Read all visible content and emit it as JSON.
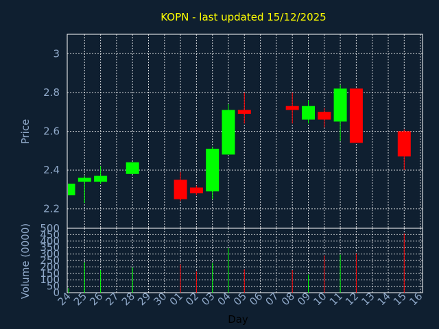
{
  "chart_data": {
    "type": "candlestick",
    "title": "KOPN - last updated 15/12/2025",
    "xlabel": "Day",
    "x_ticks": [
      "24",
      "25",
      "26",
      "27",
      "28",
      "29",
      "30",
      "01",
      "02",
      "03",
      "04",
      "05",
      "06",
      "07",
      "08",
      "09",
      "10",
      "11",
      "12",
      "13",
      "14",
      "15",
      "16"
    ],
    "price_panel": {
      "ylabel": "Price",
      "ylim": [
        2.1,
        3.1
      ],
      "y_ticks": [
        "2.2",
        "2.4",
        "2.6",
        "2.8",
        "3"
      ],
      "grid": true,
      "candles": [
        {
          "day": "24",
          "open": 2.27,
          "high": 2.33,
          "low": 2.27,
          "close": 2.33,
          "direction": "up"
        },
        {
          "day": "25",
          "open": 2.34,
          "high": 2.37,
          "low": 2.23,
          "close": 2.36,
          "direction": "up"
        },
        {
          "day": "26",
          "open": 2.34,
          "high": 2.42,
          "low": 2.33,
          "close": 2.37,
          "direction": "up"
        },
        {
          "day": "28",
          "open": 2.38,
          "high": 2.44,
          "low": 2.38,
          "close": 2.44,
          "direction": "up"
        },
        {
          "day": "01",
          "open": 2.35,
          "high": 2.39,
          "low": 2.24,
          "close": 2.25,
          "direction": "down"
        },
        {
          "day": "02",
          "open": 2.31,
          "high": 2.32,
          "low": 2.27,
          "close": 2.28,
          "direction": "down"
        },
        {
          "day": "03",
          "open": 2.29,
          "high": 2.52,
          "low": 2.25,
          "close": 2.51,
          "direction": "up"
        },
        {
          "day": "04",
          "open": 2.48,
          "high": 2.74,
          "low": 2.48,
          "close": 2.71,
          "direction": "up"
        },
        {
          "day": "05",
          "open": 2.71,
          "high": 2.8,
          "low": 2.64,
          "close": 2.69,
          "direction": "down"
        },
        {
          "day": "08",
          "open": 2.73,
          "high": 2.8,
          "low": 2.64,
          "close": 2.71,
          "direction": "down"
        },
        {
          "day": "09",
          "open": 2.66,
          "high": 2.76,
          "low": 2.64,
          "close": 2.73,
          "direction": "up"
        },
        {
          "day": "10",
          "open": 2.7,
          "high": 2.72,
          "low": 2.62,
          "close": 2.66,
          "direction": "down"
        },
        {
          "day": "11",
          "open": 2.65,
          "high": 2.84,
          "low": 2.55,
          "close": 2.82,
          "direction": "up"
        },
        {
          "day": "12",
          "open": 2.82,
          "high": 2.82,
          "low": 2.54,
          "close": 2.54,
          "direction": "down"
        },
        {
          "day": "15",
          "open": 2.6,
          "high": 2.61,
          "low": 2.4,
          "close": 2.47,
          "direction": "down"
        }
      ]
    },
    "volume_panel": {
      "ylabel": "Volume (0000)",
      "ylim": [
        0,
        500
      ],
      "y_ticks": [
        "0",
        "50",
        "100",
        "150",
        "200",
        "250",
        "300",
        "350",
        "400",
        "450",
        "500"
      ],
      "grid": true,
      "bars": [
        {
          "day": "24",
          "volume": 35,
          "direction": "up"
        },
        {
          "day": "25",
          "volume": 235,
          "direction": "up"
        },
        {
          "day": "26",
          "volume": 175,
          "direction": "up"
        },
        {
          "day": "28",
          "volume": 195,
          "direction": "up"
        },
        {
          "day": "01",
          "volume": 220,
          "direction": "down"
        },
        {
          "day": "02",
          "volume": 165,
          "direction": "down"
        },
        {
          "day": "03",
          "volume": 230,
          "direction": "up"
        },
        {
          "day": "04",
          "volume": 345,
          "direction": "up"
        },
        {
          "day": "05",
          "volume": 180,
          "direction": "down"
        },
        {
          "day": "08",
          "volume": 175,
          "direction": "down"
        },
        {
          "day": "09",
          "volume": 140,
          "direction": "up"
        },
        {
          "day": "10",
          "volume": 290,
          "direction": "down"
        },
        {
          "day": "11",
          "volume": 295,
          "direction": "up"
        },
        {
          "day": "12",
          "volume": 305,
          "direction": "down"
        },
        {
          "day": "15",
          "volume": 460,
          "direction": "down"
        }
      ]
    },
    "colors": {
      "background": "#0f1f30",
      "frame": "#ffffff",
      "grid": "#ffffff",
      "up": "#00ff00",
      "down": "#ff0000",
      "tick_text": "#8fa8c8",
      "title_text": "#ffff00",
      "xlabel_text": "#000000"
    }
  }
}
